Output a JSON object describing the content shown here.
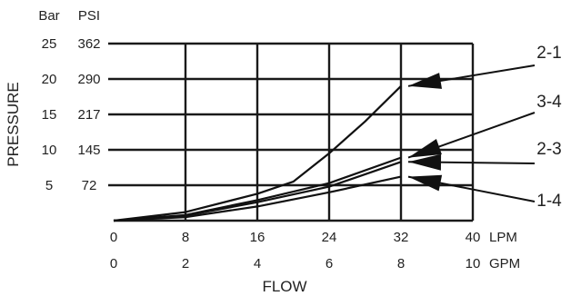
{
  "chart_data": {
    "type": "line",
    "title": "",
    "xlabel": "FLOW",
    "ylabel": "PRESSURE",
    "xlim": [
      0,
      40
    ],
    "ylim": [
      0,
      25
    ],
    "grid": true,
    "x_ticks": [
      {
        "value": 0,
        "lpm": "0",
        "gpm": "0"
      },
      {
        "value": 8,
        "lpm": "8",
        "gpm": "2"
      },
      {
        "value": 16,
        "lpm": "16",
        "gpm": "4"
      },
      {
        "value": 24,
        "lpm": "24",
        "gpm": "6"
      },
      {
        "value": 32,
        "lpm": "32",
        "gpm": "8"
      },
      {
        "value": 40,
        "lpm": "40",
        "gpm": "10"
      }
    ],
    "x_units": {
      "lpm": "LPM",
      "gpm": "GPM"
    },
    "y_ticks": [
      {
        "value": 5,
        "bar": "5",
        "psi": "72"
      },
      {
        "value": 10,
        "bar": "10",
        "psi": "145"
      },
      {
        "value": 15,
        "bar": "15",
        "psi": "217"
      },
      {
        "value": 20,
        "bar": "20",
        "psi": "290"
      },
      {
        "value": 25,
        "bar": "25",
        "psi": "362"
      }
    ],
    "y_units": {
      "bar": "Bar",
      "psi": "PSI"
    },
    "series": [
      {
        "name": "2-1",
        "x": [
          0,
          8,
          16,
          20,
          24,
          28,
          32
        ],
        "y": [
          0,
          1.2,
          3.8,
          5.5,
          9.5,
          14,
          19
        ]
      },
      {
        "name": "3-4",
        "x": [
          0,
          8,
          16,
          24,
          32
        ],
        "y": [
          0,
          0.8,
          2.9,
          5.3,
          8.9
        ]
      },
      {
        "name": "2-3",
        "x": [
          0,
          8,
          16,
          24,
          32
        ],
        "y": [
          0,
          0.7,
          2.6,
          4.8,
          8.3
        ]
      },
      {
        "name": "1-4",
        "x": [
          0,
          8,
          16,
          24,
          32
        ],
        "y": [
          0,
          0.5,
          2.0,
          4.0,
          6.2
        ]
      }
    ],
    "annotations": [
      {
        "series": "2-1",
        "label": "2-1",
        "point": [
          32,
          19
        ]
      },
      {
        "series": "3-4",
        "label": "3-4",
        "point": [
          32,
          8.9
        ]
      },
      {
        "series": "2-3",
        "label": "2-3",
        "point": [
          32,
          8.3
        ]
      },
      {
        "series": "1-4",
        "label": "1-4",
        "point": [
          32,
          6.2
        ]
      }
    ]
  }
}
